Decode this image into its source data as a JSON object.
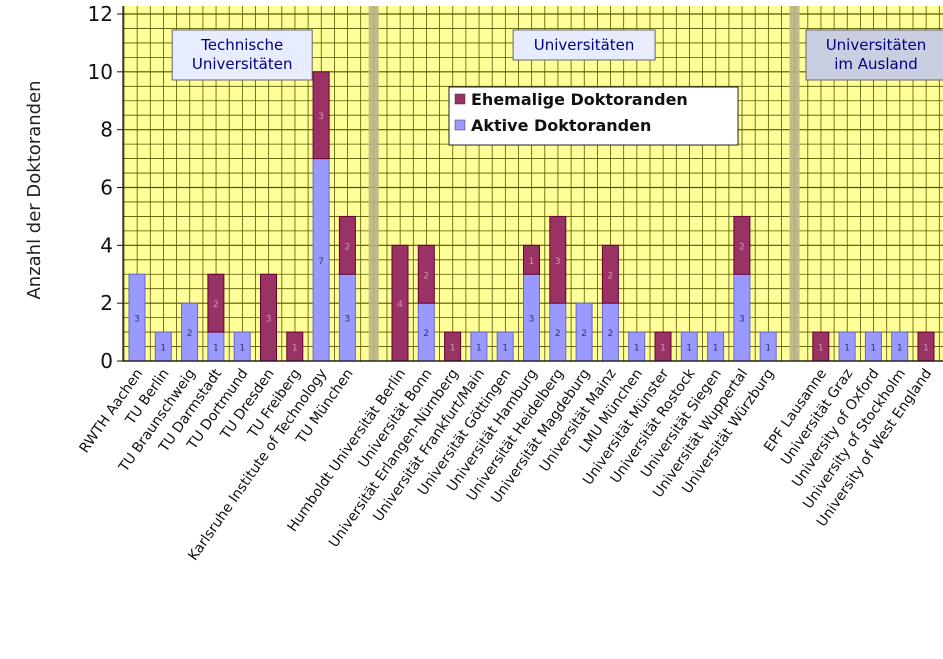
{
  "chart_data": {
    "type": "bar",
    "stacked": true,
    "ylabel": "Anzahl der Doktoranden",
    "ylim": [
      0,
      12
    ],
    "yticks": [
      0,
      2,
      4,
      6,
      8,
      10,
      12
    ],
    "grid": true,
    "legend_position": "top-center",
    "series": [
      {
        "name": "Aktive Doktoranden",
        "color": "#9999ff"
      },
      {
        "name": "Ehemalige Doktoranden",
        "color": "#993366"
      }
    ],
    "groups": [
      {
        "label": "Technische Universitäten",
        "items": [
          {
            "name": "RWTH Aachen",
            "active": 3,
            "former": 0,
            "labels": [
              "3"
            ]
          },
          {
            "name": "TU Berlin",
            "active": 1,
            "former": 0,
            "labels": [
              "1"
            ]
          },
          {
            "name": "TU Braunschweig",
            "active": 2,
            "former": 0,
            "labels": [
              "2"
            ]
          },
          {
            "name": "TU Darmstadt",
            "active": 1,
            "former": 2,
            "labels": [
              "1",
              "2"
            ]
          },
          {
            "name": "TU Dortmund",
            "active": 1,
            "former": 0,
            "labels": [
              "1"
            ]
          },
          {
            "name": "TU Dresden",
            "active": 0,
            "former": 3,
            "labels": [
              "3"
            ]
          },
          {
            "name": "TU Freiberg",
            "active": 0,
            "former": 1,
            "labels": [
              "1"
            ]
          },
          {
            "name": "Karlsruhe Institute of Technology",
            "active": 7,
            "former": 3,
            "labels": [
              "7",
              "3"
            ]
          },
          {
            "name": "TU München",
            "active": 3,
            "former": 2,
            "labels": [
              "3",
              "2"
            ]
          }
        ]
      },
      {
        "label": "Universitäten",
        "items": [
          {
            "name": "Humboldt Universität Berlin",
            "active": 0,
            "former": 4,
            "labels": [
              "4"
            ]
          },
          {
            "name": "Universität Bonn",
            "active": 2,
            "former": 2,
            "labels": [
              "2",
              "2"
            ]
          },
          {
            "name": "Universität Erlangen-Nürnberg",
            "active": 0,
            "former": 1,
            "labels": [
              "1"
            ]
          },
          {
            "name": "Universität Frankfurt/Main",
            "active": 1,
            "former": 0,
            "labels": [
              "1"
            ]
          },
          {
            "name": "Universität Göttingen",
            "active": 1,
            "former": 0,
            "labels": [
              "1"
            ]
          },
          {
            "name": "Universität Hamburg",
            "active": 3,
            "former": 1,
            "labels": [
              "3",
              "1"
            ]
          },
          {
            "name": "Universität Heidelberg",
            "active": 2,
            "former": 3,
            "labels": [
              "2",
              "3"
            ]
          },
          {
            "name": "Universität Magdeburg",
            "active": 2,
            "former": 0,
            "labels": [
              "2"
            ]
          },
          {
            "name": "Universität Mainz",
            "active": 2,
            "former": 2,
            "labels": [
              "2",
              "2"
            ]
          },
          {
            "name": "LMU München",
            "active": 1,
            "former": 0,
            "labels": [
              "1"
            ]
          },
          {
            "name": "Universität Münster",
            "active": 0,
            "former": 1,
            "labels": [
              "1"
            ]
          },
          {
            "name": "Universität Rostock",
            "active": 1,
            "former": 0,
            "labels": [
              "1"
            ]
          },
          {
            "name": "Universität Siegen",
            "active": 1,
            "former": 0,
            "labels": [
              "1"
            ]
          },
          {
            "name": "Universität Wuppertal",
            "active": 3,
            "former": 2,
            "labels": [
              "3",
              "2"
            ]
          },
          {
            "name": "Universität Würzburg",
            "active": 1,
            "former": 0,
            "labels": [
              "1"
            ]
          }
        ]
      },
      {
        "label": "Universitäten im Ausland",
        "items": [
          {
            "name": "EPF Lausanne",
            "active": 0,
            "former": 1,
            "labels": [
              "1"
            ]
          },
          {
            "name": "Universität Graz",
            "active": 1,
            "former": 0,
            "labels": [
              "1"
            ]
          },
          {
            "name": "University of Oxford",
            "active": 1,
            "former": 0,
            "labels": [
              "1"
            ]
          },
          {
            "name": "University of Stockholm",
            "active": 1,
            "former": 0,
            "labels": [
              "1"
            ]
          },
          {
            "name": "University of West England",
            "active": 0,
            "former": 1,
            "labels": [
              "1"
            ]
          }
        ]
      }
    ],
    "colors": {
      "plot_bg": "#ffff99",
      "grid": "#555500",
      "separator": "#b8b48a",
      "group_box_bg": "#e8ecff",
      "group_box_bg_foreign": "#c9cfe0",
      "group_text": "#000080",
      "bar_outline": "#6666cc"
    }
  }
}
